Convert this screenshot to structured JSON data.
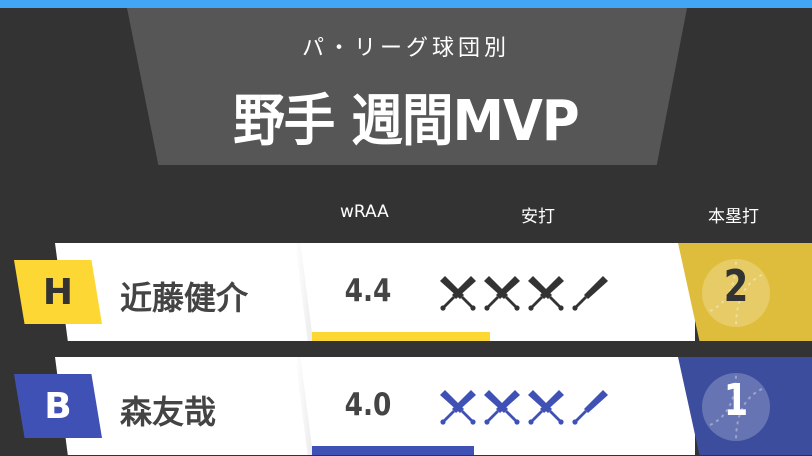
{
  "header": {
    "subtitle": "パ・リーグ球団別",
    "title": "野手 週間MVP"
  },
  "columns": {
    "wraa": "wRAA",
    "hits": "安打",
    "hr": "本塁打"
  },
  "players": [
    {
      "team": "H",
      "name": "近藤健介",
      "wraa": "4.4",
      "wraa_value": 4.4,
      "hits": 7,
      "hr": "2",
      "team_color": "#fdd835",
      "hr_color": "#dfbd3c",
      "hr_text_color": "#333333",
      "bat_color": "#333333",
      "badge_text_color": "#333333"
    },
    {
      "team": "B",
      "name": "森友哉",
      "wraa": "4.0",
      "wraa_value": 4.0,
      "hits": 7,
      "hr": "1",
      "team_color": "#3f51b5",
      "hr_color": "#3c4d9e",
      "hr_text_color": "#ffffff",
      "bat_color": "#3f51b5",
      "badge_text_color": "#ffffff"
    }
  ],
  "colors": {
    "accent_bar": "#42a5f5",
    "background": "#333333",
    "panel": "#565656"
  }
}
